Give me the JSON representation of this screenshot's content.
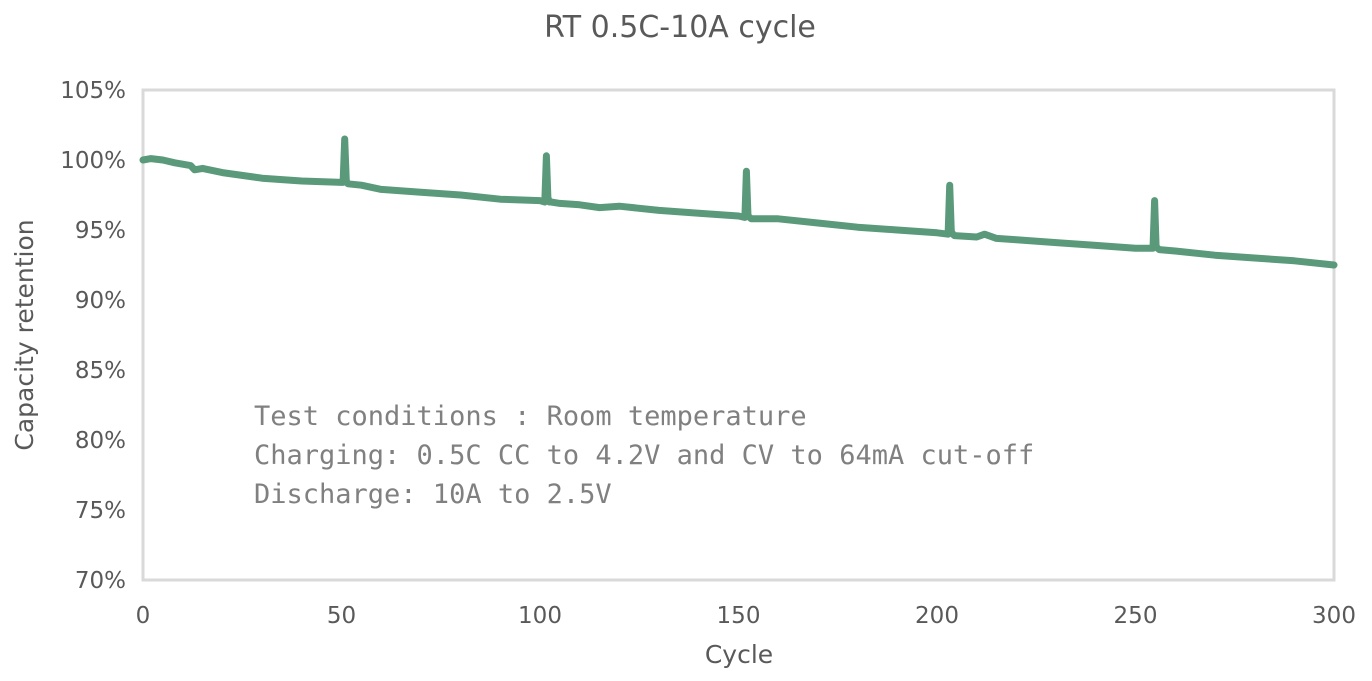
{
  "chart_data": {
    "type": "line",
    "title": "RT 0.5C-10A  cycle",
    "xlabel": "Cycle",
    "ylabel": "Capacity retention",
    "xlim": [
      0,
      300
    ],
    "ylim": [
      70,
      105
    ],
    "x_ticks": [
      0,
      50,
      100,
      150,
      200,
      250,
      300
    ],
    "y_ticks": [
      70,
      75,
      80,
      85,
      90,
      95,
      100,
      105
    ],
    "y_tick_labels": [
      "70%",
      "75%",
      "80%",
      "85%",
      "90%",
      "95%",
      "100%",
      "105%"
    ],
    "grid": false,
    "legend": "none",
    "color": "#5a9a7a",
    "series": [
      {
        "x": [
          0,
          2,
          5,
          8,
          12,
          13,
          15,
          20,
          30,
          40,
          50,
          50.4,
          50.8,
          51.2,
          51.6,
          55,
          60,
          70,
          80,
          90,
          100,
          101.2,
          101.6,
          102,
          102.4,
          102.8,
          105,
          110,
          115,
          120,
          130,
          140,
          150,
          151.6,
          152,
          152.4,
          152.8,
          153.2,
          155,
          160,
          170,
          180,
          190,
          200,
          202.8,
          203.2,
          203.6,
          204,
          204.4,
          210,
          212,
          215,
          220,
          230,
          240,
          250,
          254.4,
          254.8,
          255.2,
          255.6,
          256,
          260,
          270,
          280,
          290,
          300
        ],
        "y": [
          100,
          100.1,
          100,
          99.8,
          99.6,
          99.3,
          99.4,
          99.1,
          98.7,
          98.5,
          98.4,
          98.4,
          101.5,
          98.5,
          98.3,
          98.2,
          97.9,
          97.7,
          97.5,
          97.2,
          97.1,
          97.0,
          100.3,
          97.3,
          97.0,
          97.0,
          96.9,
          96.8,
          96.6,
          96.7,
          96.4,
          96.2,
          96.0,
          95.9,
          99.2,
          96.0,
          95.9,
          95.8,
          95.8,
          95.8,
          95.5,
          95.2,
          95.0,
          94.8,
          94.7,
          98.2,
          94.9,
          94.7,
          94.6,
          94.5,
          94.7,
          94.4,
          94.3,
          94.1,
          93.9,
          93.7,
          93.7,
          97.1,
          93.8,
          93.7,
          93.6,
          93.5,
          93.2,
          93.0,
          92.8,
          92.5
        ]
      }
    ],
    "annotation_lines": [
      "Test conditions : Room temperature",
      "Charging: 0.5C CC to 4.2V and CV to 64mA cut-off",
      "Discharge: 10A to 2.5V"
    ]
  }
}
